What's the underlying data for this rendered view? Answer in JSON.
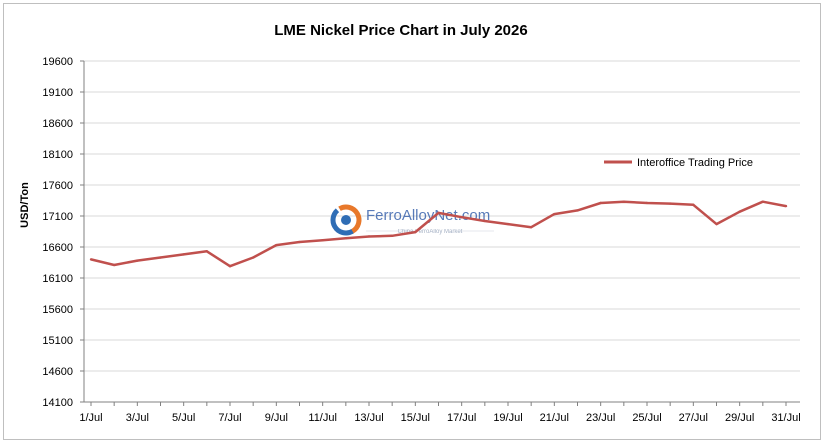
{
  "chart_data": {
    "type": "line",
    "title": "LME Nickel Price Chart in July 2026",
    "ylabel": "USD/Ton",
    "xlabel": "",
    "ylim": [
      14100,
      19600
    ],
    "yticks": [
      14100,
      14600,
      15100,
      15600,
      16100,
      16600,
      17100,
      17600,
      18100,
      18600,
      19100,
      19600
    ],
    "xtick_labels": [
      "1/Jul",
      "3/Jul",
      "5/Jul",
      "7/Jul",
      "9/Jul",
      "11/Jul",
      "13/Jul",
      "15/Jul",
      "17/Jul",
      "19/Jul",
      "21/Jul",
      "23/Jul",
      "25/Jul",
      "27/Jul",
      "29/Jul",
      "31/Jul"
    ],
    "grid": true,
    "legend_position": "right",
    "series": [
      {
        "name": "Interoffice Trading Price",
        "color": "#c0504d",
        "x": [
          1,
          2,
          3,
          4,
          5,
          6,
          7,
          8,
          9,
          10,
          11,
          12,
          13,
          14,
          15,
          16,
          17,
          18,
          19,
          20,
          21,
          22,
          23,
          24,
          25,
          26,
          27,
          28,
          29,
          30,
          31
        ],
        "y": [
          16400,
          16310,
          16380,
          16430,
          16480,
          16530,
          16290,
          16430,
          16630,
          16680,
          16710,
          16740,
          16770,
          16780,
          16840,
          17150,
          17080,
          17020,
          16970,
          16920,
          17130,
          17190,
          17310,
          17330,
          17310,
          17300,
          17280,
          16970,
          17170,
          17330,
          17260
        ]
      }
    ]
  },
  "watermark": {
    "brand": "FerroAlloyNet.com",
    "subtitle": "China FerroAlloy Market"
  }
}
